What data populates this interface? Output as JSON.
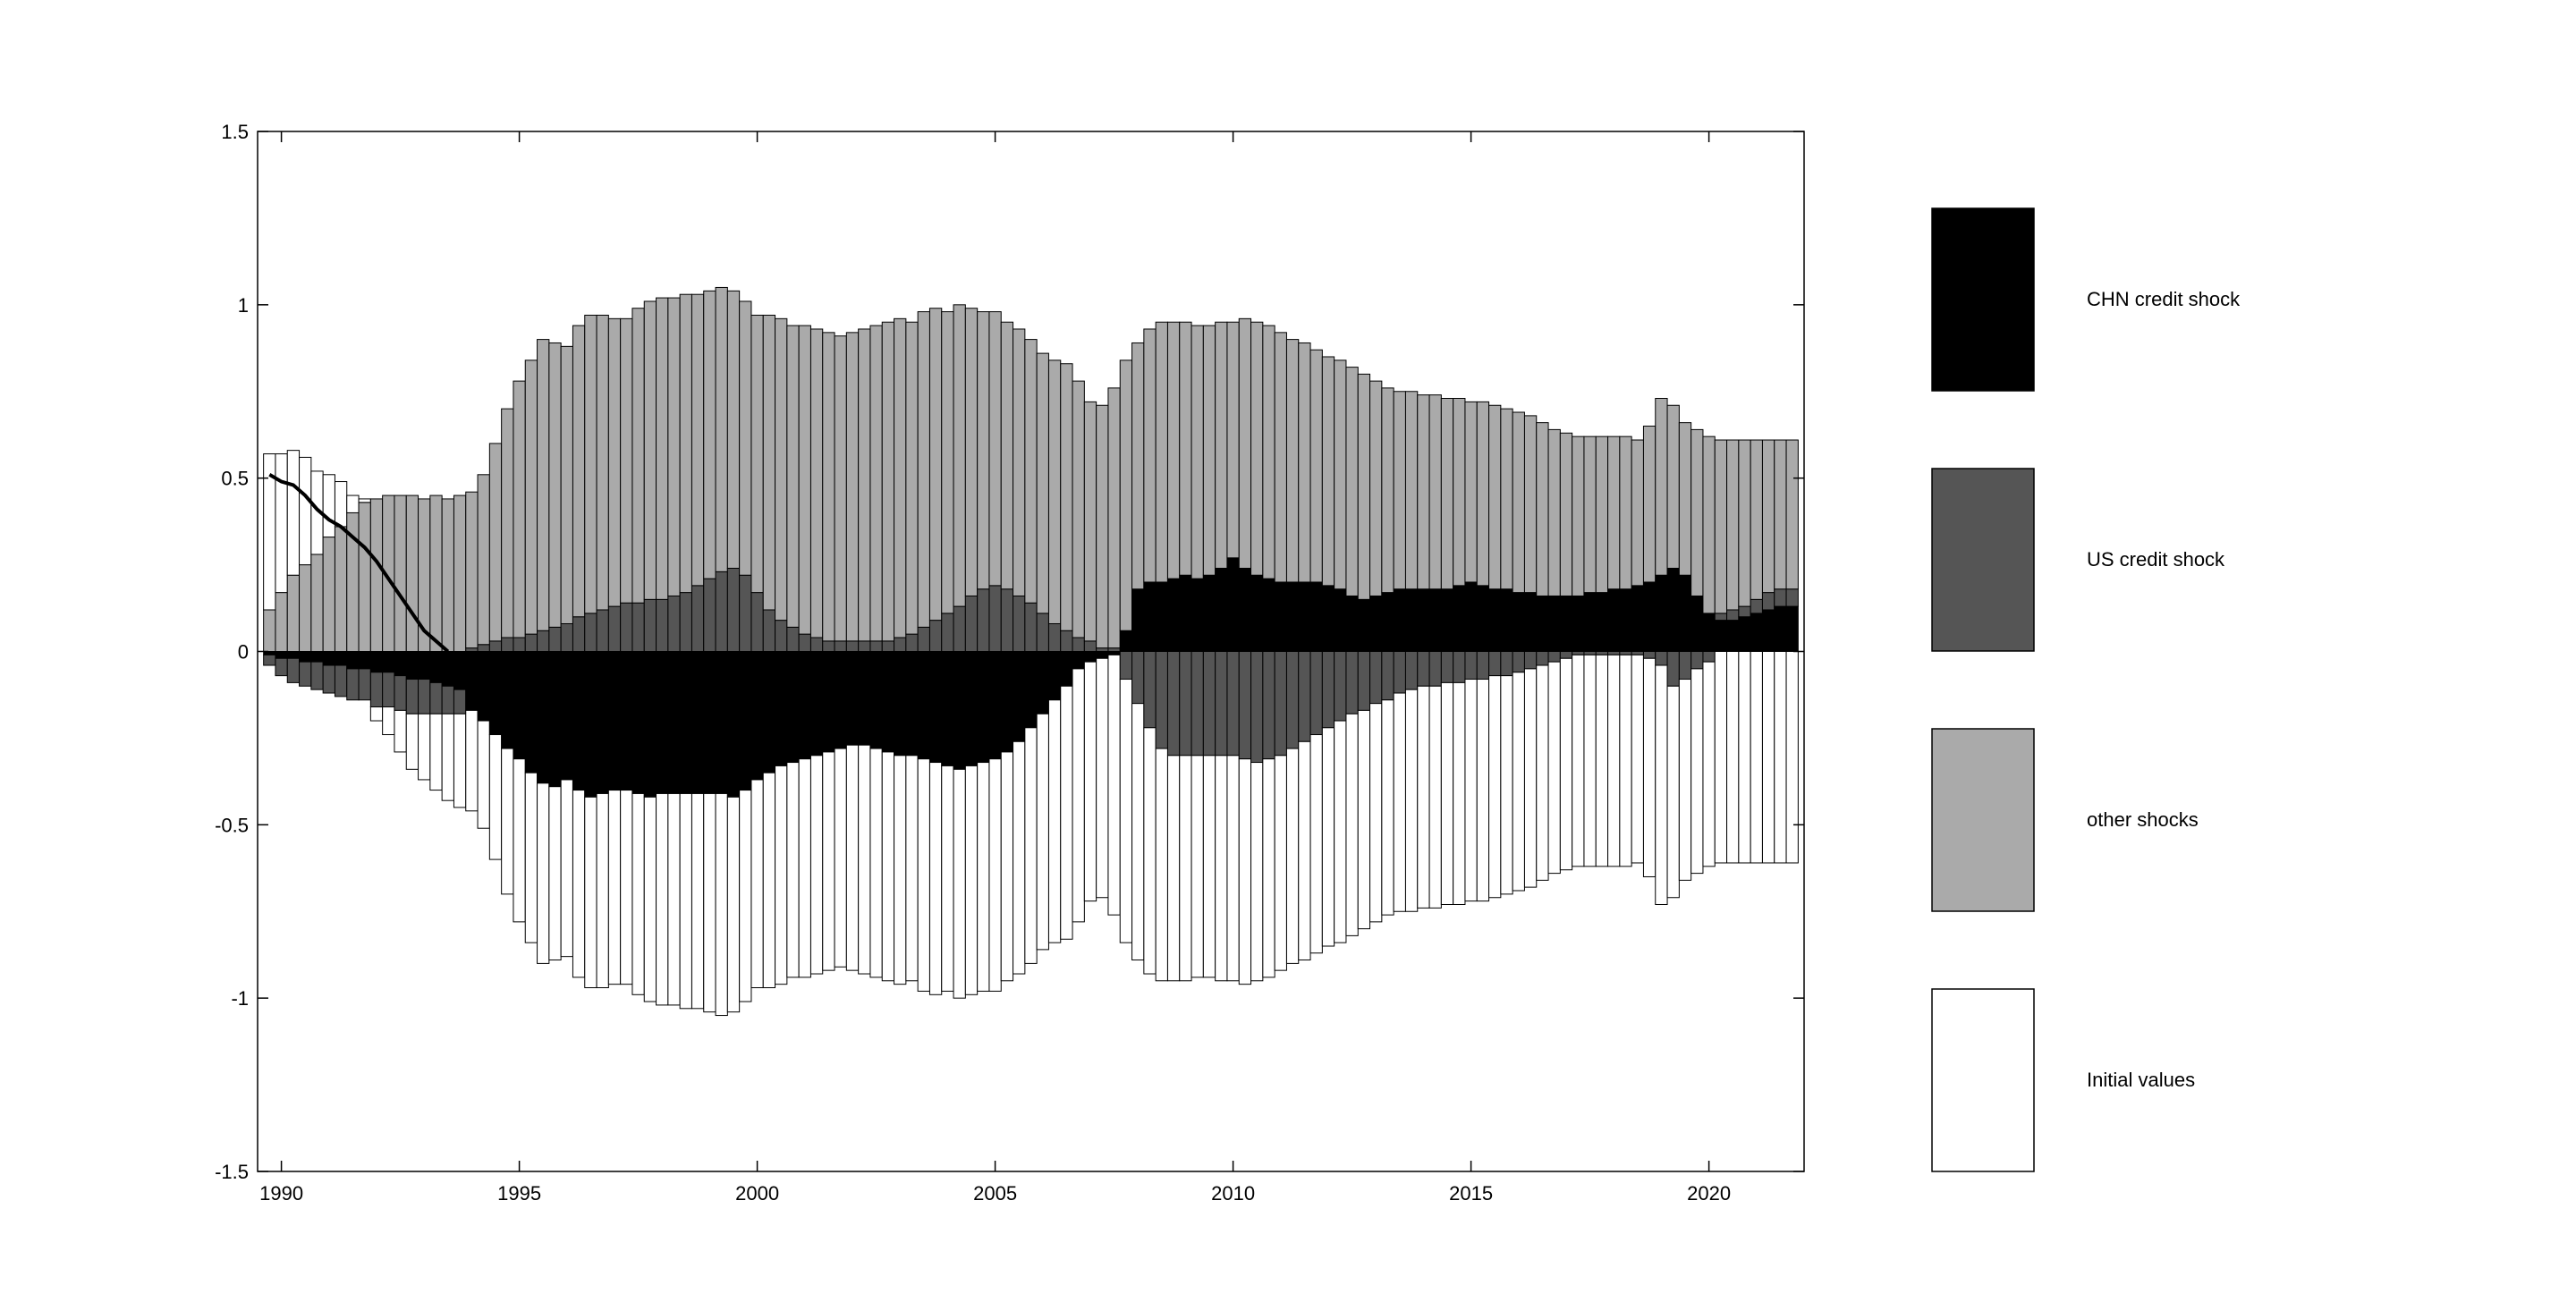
{
  "chart_data": {
    "type": "bar",
    "stacked": true,
    "x": [
      1989.75,
      1990,
      1990.25,
      1990.5,
      1990.75,
      1991,
      1991.25,
      1991.5,
      1991.75,
      1992,
      1992.25,
      1992.5,
      1992.75,
      1993,
      1993.25,
      1993.5,
      1993.75,
      1994,
      1994.25,
      1994.5,
      1994.75,
      1995,
      1995.25,
      1995.5,
      1995.75,
      1996,
      1996.25,
      1996.5,
      1996.75,
      1997,
      1997.25,
      1997.5,
      1997.75,
      1998,
      1998.25,
      1998.5,
      1998.75,
      1999,
      1999.25,
      1999.5,
      1999.75,
      2000,
      2000.25,
      2000.5,
      2000.75,
      2001,
      2001.25,
      2001.5,
      2001.75,
      2002,
      2002.25,
      2002.5,
      2002.75,
      2003,
      2003.25,
      2003.5,
      2003.75,
      2004,
      2004.25,
      2004.5,
      2004.75,
      2005,
      2005.25,
      2005.5,
      2005.75,
      2006,
      2006.25,
      2006.5,
      2006.75,
      2007,
      2007.25,
      2007.5,
      2007.75,
      2008,
      2008.25,
      2008.5,
      2008.75,
      2009,
      2009.25,
      2009.5,
      2009.75,
      2010,
      2010.25,
      2010.5,
      2010.75,
      2011,
      2011.25,
      2011.5,
      2011.75,
      2012,
      2012.25,
      2012.5,
      2012.75,
      2013,
      2013.25,
      2013.5,
      2013.75,
      2014,
      2014.25,
      2014.5,
      2014.75,
      2015,
      2015.25,
      2015.5,
      2015.75,
      2016,
      2016.25,
      2016.5,
      2016.75,
      2017,
      2017.25,
      2017.5,
      2017.75,
      2018,
      2018.25,
      2018.5,
      2018.75,
      2019,
      2019.25,
      2019.5,
      2019.75,
      2020,
      2020.25,
      2020.5,
      2020.75,
      2021,
      2021.25,
      2021.5,
      2021.75
    ],
    "series": [
      {
        "name": "CHN credit shock",
        "color": "#000000",
        "values": [
          -0.01,
          -0.02,
          -0.02,
          -0.03,
          -0.03,
          -0.04,
          -0.04,
          -0.05,
          -0.05,
          -0.06,
          -0.06,
          -0.07,
          -0.08,
          -0.08,
          -0.09,
          -0.1,
          -0.11,
          -0.17,
          -0.2,
          -0.24,
          -0.28,
          -0.31,
          -0.35,
          -0.38,
          -0.39,
          -0.37,
          -0.4,
          -0.42,
          -0.41,
          -0.4,
          -0.4,
          -0.41,
          -0.42,
          -0.41,
          -0.41,
          -0.41,
          -0.41,
          -0.41,
          -0.41,
          -0.42,
          -0.4,
          -0.37,
          -0.35,
          -0.33,
          -0.32,
          -0.31,
          -0.3,
          -0.29,
          -0.28,
          -0.27,
          -0.27,
          -0.28,
          -0.29,
          -0.3,
          -0.3,
          -0.31,
          -0.32,
          -0.33,
          -0.34,
          -0.33,
          -0.32,
          -0.31,
          -0.29,
          -0.26,
          -0.22,
          -0.18,
          -0.14,
          -0.1,
          -0.05,
          -0.03,
          -0.02,
          -0.01,
          0.06,
          0.18,
          0.2,
          0.2,
          0.21,
          0.22,
          0.21,
          0.22,
          0.24,
          0.27,
          0.24,
          0.22,
          0.21,
          0.2,
          0.2,
          0.2,
          0.2,
          0.19,
          0.18,
          0.16,
          0.15,
          0.16,
          0.17,
          0.18,
          0.18,
          0.18,
          0.18,
          0.18,
          0.19,
          0.2,
          0.19,
          0.18,
          0.18,
          0.17,
          0.17,
          0.16,
          0.16,
          0.16,
          0.16,
          0.17,
          0.17,
          0.18,
          0.18,
          0.19,
          0.2,
          0.22,
          0.24,
          0.22,
          0.16,
          0.11,
          0.09,
          0.09,
          0.1,
          0.11,
          0.12,
          0.13,
          0.13
        ]
      },
      {
        "name": "US credit shock",
        "color": "#555555",
        "values": [
          -0.03,
          -0.05,
          -0.07,
          -0.07,
          -0.08,
          -0.08,
          -0.09,
          -0.09,
          -0.09,
          -0.1,
          -0.1,
          -0.1,
          -0.1,
          -0.1,
          -0.09,
          -0.08,
          -0.07,
          0.01,
          0.02,
          0.03,
          0.04,
          0.04,
          0.05,
          0.06,
          0.07,
          0.08,
          0.1,
          0.11,
          0.12,
          0.13,
          0.14,
          0.14,
          0.15,
          0.15,
          0.16,
          0.17,
          0.19,
          0.21,
          0.23,
          0.24,
          0.22,
          0.17,
          0.12,
          0.09,
          0.07,
          0.05,
          0.04,
          0.03,
          0.03,
          0.03,
          0.03,
          0.03,
          0.03,
          0.04,
          0.05,
          0.07,
          0.09,
          0.11,
          0.13,
          0.16,
          0.18,
          0.19,
          0.18,
          0.16,
          0.14,
          0.11,
          0.08,
          0.06,
          0.04,
          0.03,
          0.01,
          0.01,
          -0.08,
          -0.15,
          -0.22,
          -0.28,
          -0.3,
          -0.3,
          -0.3,
          -0.3,
          -0.3,
          -0.3,
          -0.31,
          -0.32,
          -0.31,
          -0.3,
          -0.28,
          -0.26,
          -0.24,
          -0.22,
          -0.2,
          -0.18,
          -0.17,
          -0.15,
          -0.14,
          -0.12,
          -0.11,
          -0.1,
          -0.1,
          -0.09,
          -0.09,
          -0.08,
          -0.08,
          -0.07,
          -0.07,
          -0.06,
          -0.05,
          -0.04,
          -0.03,
          -0.02,
          -0.01,
          -0.01,
          -0.01,
          -0.01,
          -0.01,
          -0.01,
          -0.02,
          -0.04,
          -0.1,
          -0.08,
          -0.05,
          -0.03,
          0.02,
          0.03,
          0.03,
          0.04,
          0.05,
          0.05,
          0.05
        ]
      },
      {
        "name": "other shocks",
        "color": "#aaaaaa",
        "values": [
          0.12,
          0.17,
          0.22,
          0.25,
          0.28,
          0.33,
          0.36,
          0.4,
          0.43,
          0.44,
          0.45,
          0.45,
          0.45,
          0.44,
          0.45,
          0.44,
          0.45,
          0.45,
          0.49,
          0.57,
          0.66,
          0.74,
          0.79,
          0.84,
          0.82,
          0.8,
          0.84,
          0.86,
          0.85,
          0.83,
          0.82,
          0.85,
          0.86,
          0.87,
          0.86,
          0.86,
          0.84,
          0.83,
          0.82,
          0.8,
          0.79,
          0.8,
          0.85,
          0.87,
          0.87,
          0.89,
          0.89,
          0.89,
          0.88,
          0.89,
          0.9,
          0.91,
          0.92,
          0.92,
          0.9,
          0.91,
          0.9,
          0.87,
          0.87,
          0.83,
          0.8,
          0.79,
          0.77,
          0.77,
          0.76,
          0.75,
          0.76,
          0.77,
          0.74,
          0.69,
          0.7,
          0.75,
          0.78,
          0.71,
          0.73,
          0.75,
          0.74,
          0.73,
          0.73,
          0.72,
          0.71,
          0.68,
          0.72,
          0.73,
          0.73,
          0.72,
          0.7,
          0.69,
          0.67,
          0.66,
          0.66,
          0.66,
          0.65,
          0.62,
          0.59,
          0.57,
          0.57,
          0.56,
          0.56,
          0.55,
          0.54,
          0.52,
          0.53,
          0.53,
          0.52,
          0.52,
          0.51,
          0.5,
          0.48,
          0.47,
          0.46,
          0.45,
          0.45,
          0.44,
          0.44,
          0.42,
          0.45,
          0.51,
          0.47,
          0.44,
          0.48,
          0.51,
          0.5,
          0.49,
          0.48,
          0.46,
          0.44,
          0.43,
          0.43
        ]
      },
      {
        "name": "Initial values",
        "color": "#ffffff",
        "values": [
          0.45,
          0.4,
          0.36,
          0.31,
          0.24,
          0.18,
          0.13,
          0.05,
          0.01,
          -0.04,
          -0.08,
          -0.12,
          -0.16,
          -0.19,
          -0.22,
          -0.25,
          -0.27,
          -0.29,
          -0.31,
          -0.36,
          -0.42,
          -0.47,
          -0.49,
          -0.52,
          -0.5,
          -0.51,
          -0.54,
          -0.55,
          -0.56,
          -0.56,
          -0.56,
          -0.58,
          -0.59,
          -0.61,
          -0.61,
          -0.62,
          -0.62,
          -0.63,
          -0.64,
          -0.62,
          -0.61,
          -0.6,
          -0.62,
          -0.63,
          -0.62,
          -0.63,
          -0.63,
          -0.63,
          -0.63,
          -0.65,
          -0.66,
          -0.66,
          -0.66,
          -0.66,
          -0.65,
          -0.67,
          -0.67,
          -0.65,
          -0.66,
          -0.66,
          -0.66,
          -0.67,
          -0.66,
          -0.67,
          -0.68,
          -0.68,
          -0.7,
          -0.73,
          -0.73,
          -0.69,
          -0.69,
          -0.75,
          -0.76,
          -0.74,
          -0.71,
          -0.67,
          -0.65,
          -0.65,
          -0.64,
          -0.64,
          -0.65,
          -0.65,
          -0.65,
          -0.63,
          -0.63,
          -0.62,
          -0.62,
          -0.63,
          -0.63,
          -0.63,
          -0.64,
          -0.64,
          -0.63,
          -0.63,
          -0.62,
          -0.63,
          -0.64,
          -0.64,
          -0.64,
          -0.64,
          -0.64,
          -0.64,
          -0.64,
          -0.64,
          -0.63,
          -0.63,
          -0.63,
          -0.62,
          -0.61,
          -0.61,
          -0.61,
          -0.61,
          -0.61,
          -0.61,
          -0.61,
          -0.6,
          -0.63,
          -0.69,
          -0.61,
          -0.58,
          -0.59,
          -0.59,
          -0.61,
          -0.61,
          -0.61,
          -0.61,
          -0.61,
          -0.61,
          -0.61
        ]
      }
    ],
    "line": {
      "color": "#000000",
      "x": [
        1989.75,
        1990,
        1990.25,
        1990.5,
        1990.75,
        1991,
        1991.25,
        1991.5,
        1991.75,
        1992,
        1992.25,
        1992.5,
        1992.75,
        1993,
        1993.25,
        1993.5
      ],
      "values": [
        0.51,
        0.49,
        0.48,
        0.45,
        0.41,
        0.38,
        0.36,
        0.33,
        0.3,
        0.26,
        0.21,
        0.16,
        0.11,
        0.06,
        0.03,
        0.0
      ]
    },
    "xlim": [
      1989.5,
      2022
    ],
    "xticks": [
      1990,
      1995,
      2000,
      2005,
      2010,
      2015,
      2020
    ],
    "ylim": [
      -1.5,
      1.5
    ],
    "yticks": [
      -1.5,
      -1,
      -0.5,
      0,
      0.5,
      1,
      1.5
    ],
    "legend": "right"
  }
}
